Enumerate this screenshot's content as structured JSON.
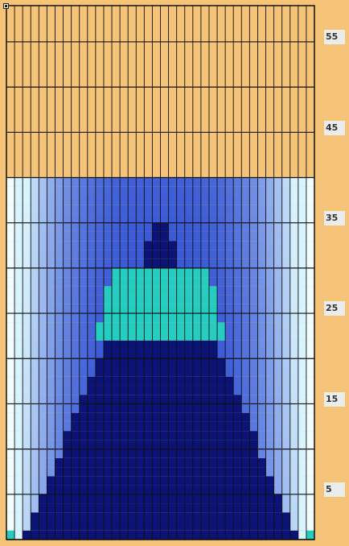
{
  "window": {
    "corner_control": "window-menu-icon"
  },
  "grid": {
    "columns": 38,
    "rows": 59,
    "row_axis_labels": [
      "55",
      "45",
      "35",
      "25",
      "15",
      "5"
    ],
    "row_axis_values": [
      55,
      45,
      35,
      25,
      15,
      5
    ],
    "region_top_row": 40,
    "peak_rows": [
      22,
      29
    ],
    "colors": {
      "background": "#f5c478",
      "grid_line": "#111111",
      "deep": "#0b1377",
      "mid": "#1f3fcf",
      "light": "#d8f4ff",
      "peak": "#25cdc0",
      "axis_label_bg": "#ececec"
    }
  }
}
